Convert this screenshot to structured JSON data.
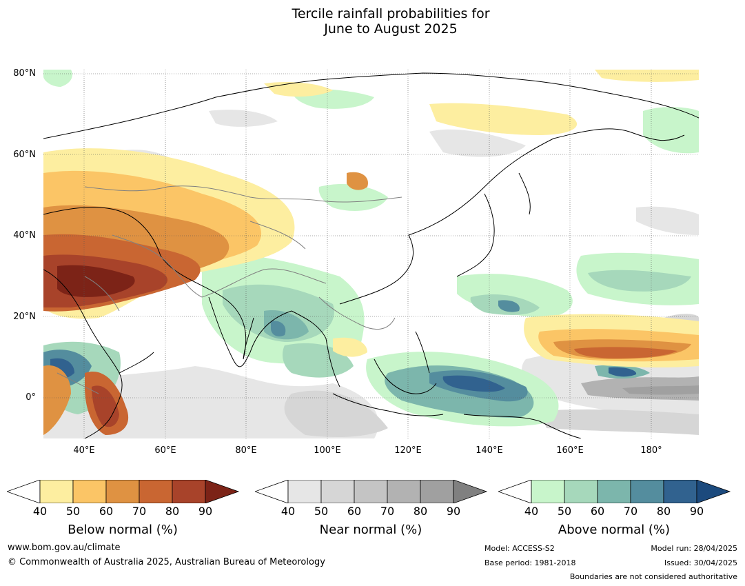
{
  "title_line1": "Tercile rainfall probabilities for",
  "title_line2": "June to August 2025",
  "lat_labels": [
    "80°N",
    "60°N",
    "40°N",
    "20°N",
    "0°"
  ],
  "lon_labels": [
    "40°E",
    "60°E",
    "80°E",
    "100°E",
    "120°E",
    "140°E",
    "160°E",
    "180°"
  ],
  "colorbars": [
    {
      "name": "below",
      "title": "Below normal (%)",
      "ticks": [
        "40",
        "50",
        "60",
        "70",
        "80",
        "90"
      ],
      "colors": [
        "#fdeea0",
        "#fbc566",
        "#df9242",
        "#c96632",
        "#a8432a",
        "#7c2317"
      ]
    },
    {
      "name": "near",
      "title": "Near normal (%)",
      "ticks": [
        "40",
        "50",
        "60",
        "70",
        "80",
        "90"
      ],
      "colors": [
        "#e6e6e6",
        "#d6d6d6",
        "#c4c4c4",
        "#b2b2b2",
        "#a0a0a0",
        "#808080"
      ]
    },
    {
      "name": "above",
      "title": "Above normal (%)",
      "ticks": [
        "40",
        "50",
        "60",
        "70",
        "80",
        "90"
      ],
      "colors": [
        "#c8f5cb",
        "#a6d8bb",
        "#7cb6ac",
        "#548d9e",
        "#31628f",
        "#1c4a7d"
      ]
    }
  ],
  "footer": {
    "website": "www.bom.gov.au/climate",
    "copyright": "© Commonwealth of Australia 2025, Australian Bureau of Meteorology",
    "model": "Model: ACCESS-S2",
    "base_period": "Base period: 1981-2018",
    "model_run": "Model run: 28/04/2025",
    "issued": "Issued: 30/04/2025",
    "disclaimer": "Boundaries are not considered authoritative"
  }
}
